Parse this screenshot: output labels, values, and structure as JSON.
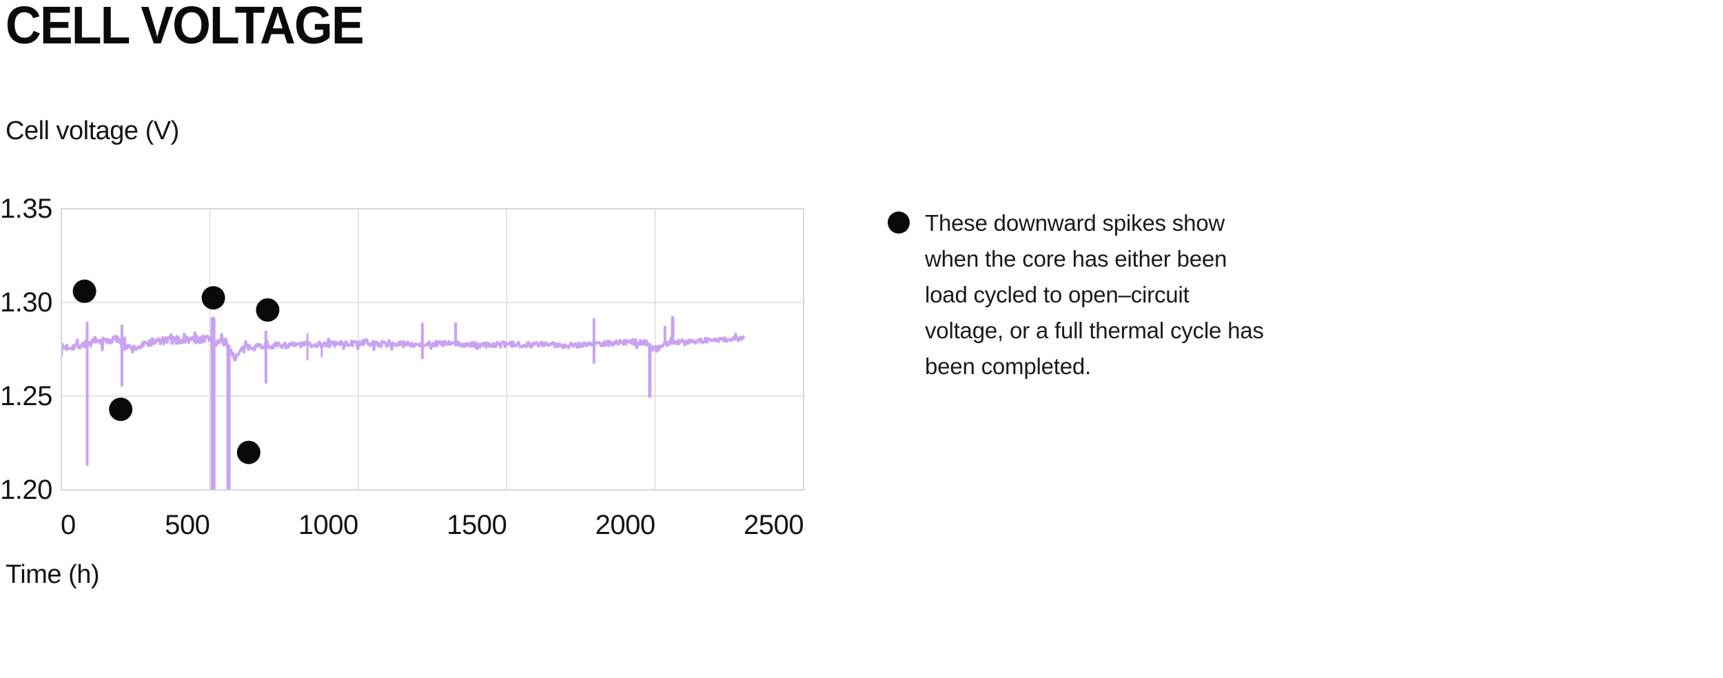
{
  "header": {
    "title": "CELL VOLTAGE"
  },
  "chart_data": {
    "type": "line",
    "title": "CELL VOLTAGE",
    "ylabel": "Cell voltage (V)",
    "xlabel": "Time (h)",
    "xlim": [
      0,
      2500
    ],
    "ylim": [
      1.2,
      1.35
    ],
    "x_ticks": [
      0,
      500,
      1000,
      1500,
      2000,
      2500
    ],
    "y_ticks": [
      1.2,
      1.25,
      1.3,
      1.35
    ],
    "grid": true,
    "colors": {
      "series": "#c9a2f1",
      "marker": "#0a0a0a",
      "grid": "#dcdcdc",
      "border": "#d6d6d6",
      "background": "#ffffff"
    },
    "series": [
      {
        "name": "cell-voltage",
        "end_t": 2300,
        "trend": [
          [
            0,
            1.2758
          ],
          [
            60,
            1.2772
          ],
          [
            90,
            1.278
          ],
          [
            150,
            1.2795
          ],
          [
            195,
            1.2805
          ],
          [
            210,
            1.2768
          ],
          [
            240,
            1.2752
          ],
          [
            275,
            1.277
          ],
          [
            300,
            1.279
          ],
          [
            400,
            1.28
          ],
          [
            505,
            1.2806
          ],
          [
            520,
            1.2788
          ],
          [
            555,
            1.2784
          ],
          [
            572,
            1.2736
          ],
          [
            588,
            1.2702
          ],
          [
            605,
            1.2742
          ],
          [
            640,
            1.2768
          ],
          [
            700,
            1.277
          ],
          [
            800,
            1.2774
          ],
          [
            900,
            1.2779
          ],
          [
            1000,
            1.2782
          ],
          [
            1100,
            1.2778
          ],
          [
            1200,
            1.2778
          ],
          [
            1300,
            1.278
          ],
          [
            1400,
            1.2772
          ],
          [
            1500,
            1.2776
          ],
          [
            1600,
            1.2776
          ],
          [
            1700,
            1.2772
          ],
          [
            1800,
            1.278
          ],
          [
            1900,
            1.2788
          ],
          [
            1975,
            1.2788
          ],
          [
            1992,
            1.2752
          ],
          [
            2012,
            1.2756
          ],
          [
            2032,
            1.278
          ],
          [
            2062,
            1.279
          ],
          [
            2150,
            1.2796
          ],
          [
            2220,
            1.2801
          ],
          [
            2300,
            1.2808
          ]
        ],
        "noise": {
          "amp_early": 0.0021,
          "amp_mid": 0.0015,
          "amp_late": 0.0013,
          "burst_chance": 0.08,
          "burst_gain": 2.2,
          "step_h": 3,
          "seed": 7
        },
        "spikes": [
          {
            "t": 87,
            "up": 1.289,
            "down": 1.2135,
            "w": 4
          },
          {
            "t": 204,
            "up": 1.2876,
            "down": 1.2558,
            "w": 4
          },
          {
            "t": 511,
            "up": 1.2912,
            "down": 1.193,
            "w": 7
          },
          {
            "t": 563,
            "up": null,
            "down": 1.193,
            "w": 6
          },
          {
            "t": 689,
            "up": 1.2843,
            "down": 1.2574,
            "w": 4
          },
          {
            "t": 829,
            "up": 1.2832,
            "down": 1.2696,
            "w": 3
          },
          {
            "t": 877,
            "up": null,
            "down": 1.2713,
            "w": 3
          },
          {
            "t": 1216,
            "up": 1.2885,
            "down": 1.2705,
            "w": 4
          },
          {
            "t": 1328,
            "up": 1.2887,
            "down": null,
            "w": 4
          },
          {
            "t": 1794,
            "up": 1.291,
            "down": 1.2679,
            "w": 4
          },
          {
            "t": 1982,
            "up": null,
            "down": 1.25,
            "w": 5
          },
          {
            "t": 2033,
            "up": 1.2869,
            "down": null,
            "w": 4
          },
          {
            "t": 2059,
            "up": 1.2918,
            "down": null,
            "w": 5
          }
        ]
      }
    ],
    "markers": {
      "radius": 17,
      "points": [
        {
          "t": 78,
          "v": 1.306
        },
        {
          "t": 200,
          "v": 1.243
        },
        {
          "t": 512,
          "v": 1.3025
        },
        {
          "t": 631,
          "v": 1.22
        },
        {
          "t": 695,
          "v": 1.296
        }
      ]
    },
    "annotation": {
      "lines": [
        "These downward spikes show",
        "when the core has either been",
        "load cycled to open–circuit",
        "voltage, or a full thermal cycle has",
        "been completed."
      ]
    }
  }
}
